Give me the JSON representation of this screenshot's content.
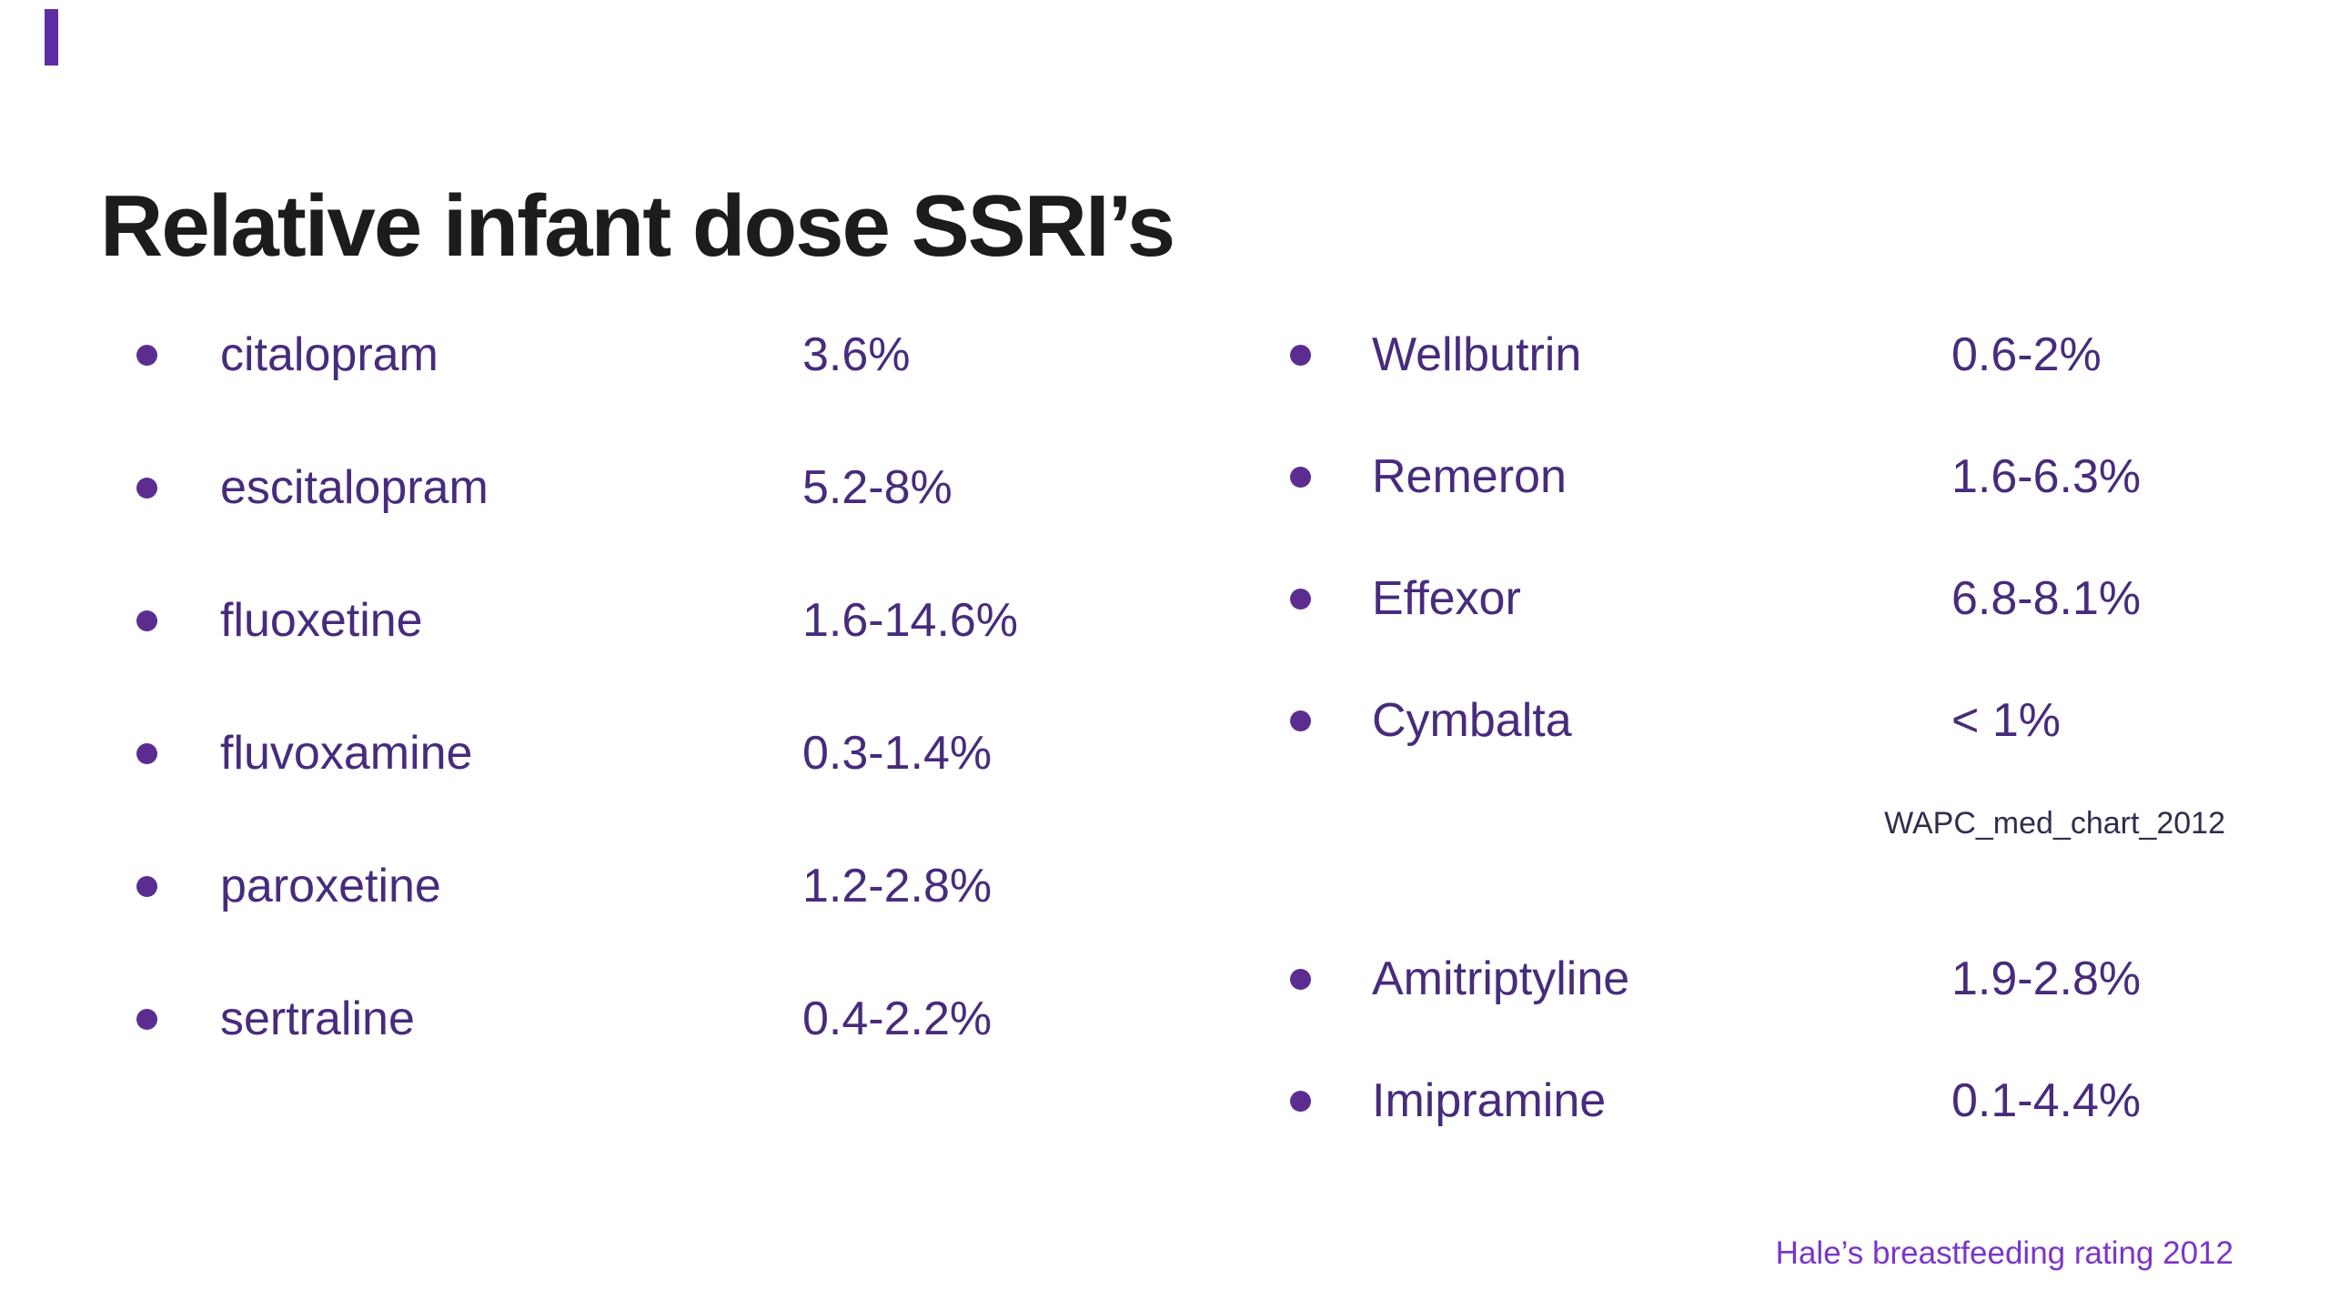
{
  "slide": {
    "title": "Relative infant dose SSRI’s",
    "source_note": "WAPC_med_chart_2012",
    "footer": "Hale’s breastfeeding rating 2012"
  },
  "left_list": {
    "items": [
      {
        "name": "citalopram",
        "value": "3.6%"
      },
      {
        "name": "escitalopram",
        "value": "5.2-8%"
      },
      {
        "name": "fluoxetine",
        "value": "1.6-14.6%"
      },
      {
        "name": "fluvoxamine",
        "value": "0.3-1.4%"
      },
      {
        "name": "paroxetine",
        "value": "1.2-2.8%"
      },
      {
        "name": "sertraline",
        "value": "0.4-2.2%"
      }
    ]
  },
  "right_list": {
    "group1": [
      {
        "name": "Wellbutrin",
        "value": "0.6-2%"
      },
      {
        "name": "Remeron",
        "value": "1.6-6.3%"
      },
      {
        "name": "Effexor",
        "value": "6.8-8.1%"
      },
      {
        "name": "Cymbalta",
        "value": "< 1%"
      }
    ],
    "group2": [
      {
        "name": "Amitriptyline",
        "value": "1.9-2.8%"
      },
      {
        "name": "Imipramine",
        "value": "0.1-4.4%"
      }
    ]
  },
  "colors": {
    "title_text": "#1c1c1c",
    "list_text": "#472b7d",
    "bullet": "#5c2d91",
    "accent_stripe": "#5e2ca5",
    "source_note_text": "#2e2e4d",
    "footer_text": "#7a35c9",
    "background": "#ffffff"
  }
}
